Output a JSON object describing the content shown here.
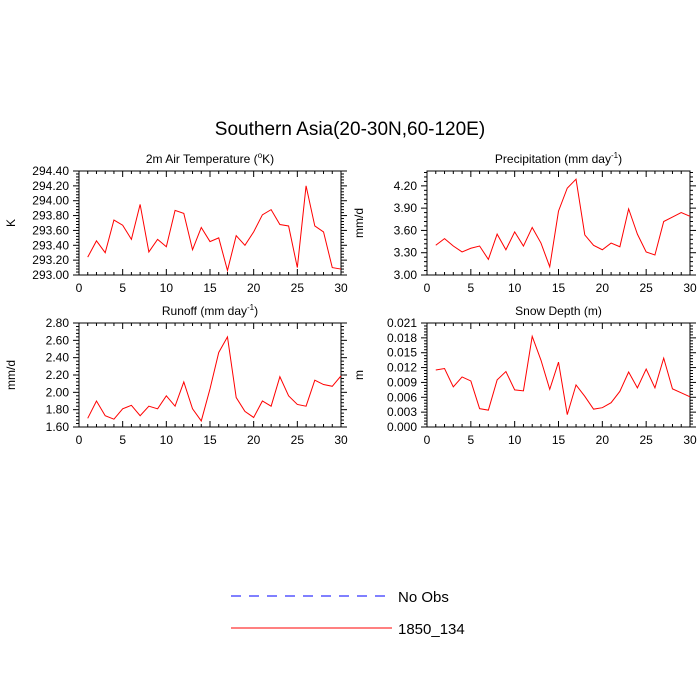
{
  "figure": {
    "title": "Southern Asia(20-30N,60-120E)"
  },
  "chart_data": [
    {
      "type": "line",
      "title_parts": [
        "2m Air Temperature (",
        "o",
        "K)"
      ],
      "ylabel": "K",
      "xlim": [
        0,
        30
      ],
      "ylim": [
        293.0,
        294.4
      ],
      "xticks": [
        0,
        5,
        10,
        15,
        20,
        25,
        30
      ],
      "yticks": [
        293.0,
        293.2,
        293.4,
        293.6,
        293.8,
        294.0,
        294.2,
        294.4
      ],
      "ytick_labels": [
        "293.00",
        "293.20",
        "293.40",
        "293.60",
        "293.80",
        "294.00",
        "294.20",
        "294.40"
      ],
      "series": [
        {
          "name": "1850_134",
          "color": "#ff0000",
          "x": [
            1,
            2,
            3,
            4,
            5,
            6,
            7,
            8,
            9,
            10,
            11,
            12,
            13,
            14,
            15,
            16,
            17,
            18,
            19,
            20,
            21,
            22,
            23,
            24,
            25,
            26,
            27,
            28,
            29,
            30
          ],
          "values": [
            293.24,
            293.46,
            293.3,
            293.74,
            293.67,
            293.48,
            293.95,
            293.31,
            293.48,
            293.38,
            293.87,
            293.83,
            293.34,
            293.64,
            293.45,
            293.5,
            293.06,
            293.53,
            293.4,
            293.58,
            293.81,
            293.88,
            293.68,
            293.66,
            293.1,
            294.2,
            293.66,
            293.58,
            293.1,
            293.08
          ]
        }
      ]
    },
    {
      "type": "line",
      "title_parts": [
        "Precipitation (mm day",
        "-1",
        ")"
      ],
      "ylabel": "mm/d",
      "xlim": [
        0,
        30
      ],
      "ylim": [
        3.0,
        4.4
      ],
      "xticks": [
        0,
        5,
        10,
        15,
        20,
        25,
        30
      ],
      "yticks": [
        3.0,
        3.3,
        3.6,
        3.9,
        4.2
      ],
      "ytick_labels": [
        "3.00",
        "3.30",
        "3.60",
        "3.90",
        "4.20"
      ],
      "series": [
        {
          "name": "1850_134",
          "color": "#ff0000",
          "x": [
            1,
            2,
            3,
            4,
            5,
            6,
            7,
            8,
            9,
            10,
            11,
            12,
            13,
            14,
            15,
            16,
            17,
            18,
            19,
            20,
            21,
            22,
            23,
            24,
            25,
            26,
            27,
            28,
            29,
            30
          ],
          "values": [
            3.4,
            3.49,
            3.39,
            3.31,
            3.36,
            3.39,
            3.21,
            3.55,
            3.34,
            3.58,
            3.39,
            3.64,
            3.43,
            3.11,
            3.86,
            4.17,
            4.29,
            3.54,
            3.4,
            3.34,
            3.43,
            3.38,
            3.89,
            3.55,
            3.31,
            3.27,
            3.72,
            3.78,
            3.84,
            3.79
          ]
        }
      ]
    },
    {
      "type": "line",
      "title_parts": [
        "Runoff (mm day",
        "-1",
        ")"
      ],
      "ylabel": "mm/d",
      "xlim": [
        0,
        30
      ],
      "ylim": [
        1.6,
        2.8
      ],
      "xticks": [
        0,
        5,
        10,
        15,
        20,
        25,
        30
      ],
      "yticks": [
        1.6,
        1.8,
        2.0,
        2.2,
        2.4,
        2.6,
        2.8
      ],
      "ytick_labels": [
        "1.60",
        "1.80",
        "2.00",
        "2.20",
        "2.40",
        "2.60",
        "2.80"
      ],
      "series": [
        {
          "name": "1850_134",
          "color": "#ff0000",
          "x": [
            1,
            2,
            3,
            4,
            5,
            6,
            7,
            8,
            9,
            10,
            11,
            12,
            13,
            14,
            15,
            16,
            17,
            18,
            19,
            20,
            21,
            22,
            23,
            24,
            25,
            26,
            27,
            28,
            29,
            30
          ],
          "values": [
            1.7,
            1.9,
            1.73,
            1.69,
            1.81,
            1.85,
            1.73,
            1.84,
            1.81,
            1.96,
            1.84,
            2.12,
            1.81,
            1.67,
            2.04,
            2.46,
            2.64,
            1.94,
            1.78,
            1.71,
            1.9,
            1.84,
            2.18,
            1.96,
            1.86,
            1.84,
            2.14,
            2.09,
            2.07,
            2.19
          ]
        }
      ]
    },
    {
      "type": "line",
      "title_parts": [
        "Snow Depth (m)",
        "",
        ""
      ],
      "ylabel": "m",
      "xlim": [
        0,
        30
      ],
      "ylim": [
        0.0,
        0.021
      ],
      "xticks": [
        0,
        5,
        10,
        15,
        20,
        25,
        30
      ],
      "yticks": [
        0.0,
        0.003,
        0.006,
        0.009,
        0.012,
        0.015,
        0.018,
        0.021
      ],
      "ytick_labels": [
        "0.000",
        "0.003",
        "0.006",
        "0.009",
        "0.012",
        "0.015",
        "0.018",
        "0.021"
      ],
      "series": [
        {
          "name": "1850_134",
          "color": "#ff0000",
          "x": [
            1,
            2,
            3,
            4,
            5,
            6,
            7,
            8,
            9,
            10,
            11,
            12,
            13,
            14,
            15,
            16,
            17,
            18,
            19,
            20,
            21,
            22,
            23,
            24,
            25,
            26,
            27,
            28,
            29,
            30
          ],
          "values": [
            0.0115,
            0.0118,
            0.0081,
            0.0101,
            0.0093,
            0.0037,
            0.0034,
            0.0095,
            0.0112,
            0.0075,
            0.0073,
            0.0183,
            0.0135,
            0.0076,
            0.0131,
            0.0025,
            0.0085,
            0.0062,
            0.0036,
            0.0039,
            0.0049,
            0.0072,
            0.0111,
            0.0079,
            0.0117,
            0.0079,
            0.0139,
            0.0077,
            0.0069,
            0.0061
          ]
        }
      ]
    }
  ],
  "legend": {
    "entries": [
      {
        "label": "No Obs",
        "color": "#0000ff",
        "style": "dashed"
      },
      {
        "label": "1850_134",
        "color": "#ff0000",
        "style": "solid"
      }
    ]
  }
}
